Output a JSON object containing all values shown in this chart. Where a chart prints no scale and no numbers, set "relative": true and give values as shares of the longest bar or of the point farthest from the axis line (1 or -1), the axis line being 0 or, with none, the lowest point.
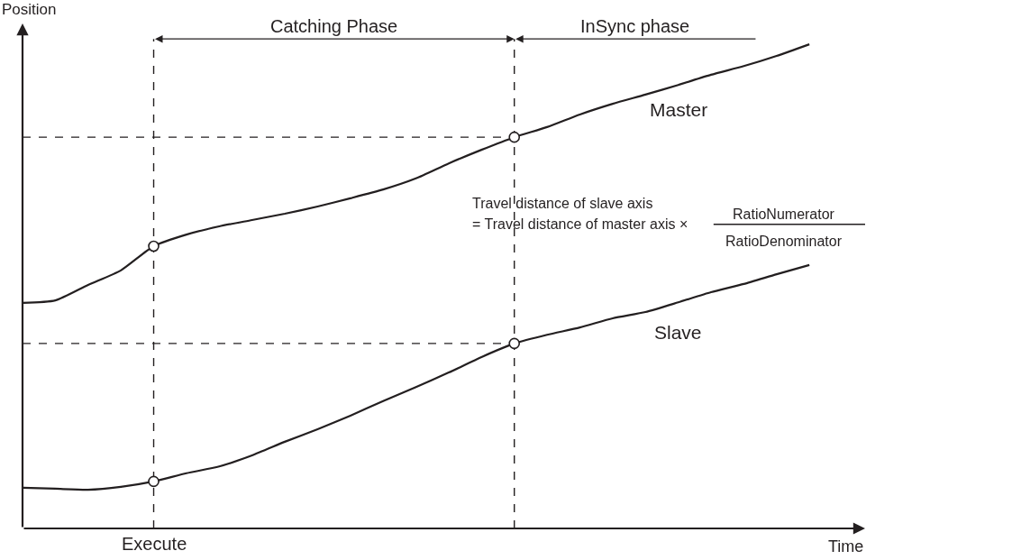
{
  "chart_data": {
    "type": "line",
    "relative": true,
    "xlabel": "Time",
    "ylabel": "Position",
    "categories": [
      null,
      null,
      null,
      null,
      null,
      null,
      null,
      null,
      null,
      null,
      null,
      null,
      null,
      null,
      null,
      null,
      null,
      null,
      null,
      null,
      null,
      null,
      null,
      null,
      null
    ],
    "series": [
      {
        "name": "Master",
        "color": "#231f20",
        "values": [
          0.466,
          0.471,
          0.503,
          0.533,
          0.583,
          0.607,
          0.624,
          0.637,
          0.65,
          0.665,
          0.682,
          0.7,
          0.723,
          0.754,
          0.782,
          0.808,
          0.829,
          0.855,
          0.877,
          0.896,
          0.916,
          0.937,
          0.955,
          0.976,
          1.0
        ]
      },
      {
        "name": "Slave",
        "color": "#231f20",
        "values": [
          0.084,
          0.082,
          0.08,
          0.086,
          0.097,
          0.114,
          0.128,
          0.151,
          0.179,
          0.205,
          0.233,
          0.263,
          0.292,
          0.322,
          0.354,
          0.382,
          0.4,
          0.415,
          0.434,
          0.447,
          0.467,
          0.488,
          0.505,
          0.525,
          0.544
        ]
      }
    ],
    "ref_lines": [
      {
        "axis": "y",
        "value": 0.808,
        "label": null,
        "line_style": "dashed"
      },
      {
        "axis": "y",
        "value": 0.382,
        "label": null,
        "line_style": "dashed"
      }
    ],
    "annotations": [
      "Execute",
      "Catching Phase",
      "InSync phase",
      "Travel distance of slave axis",
      "= Travel distance of master axis ×",
      "RatioNumerator",
      "RatioDenominator"
    ],
    "line_style": "solid",
    "legend": false,
    "tick_labels": false
  }
}
